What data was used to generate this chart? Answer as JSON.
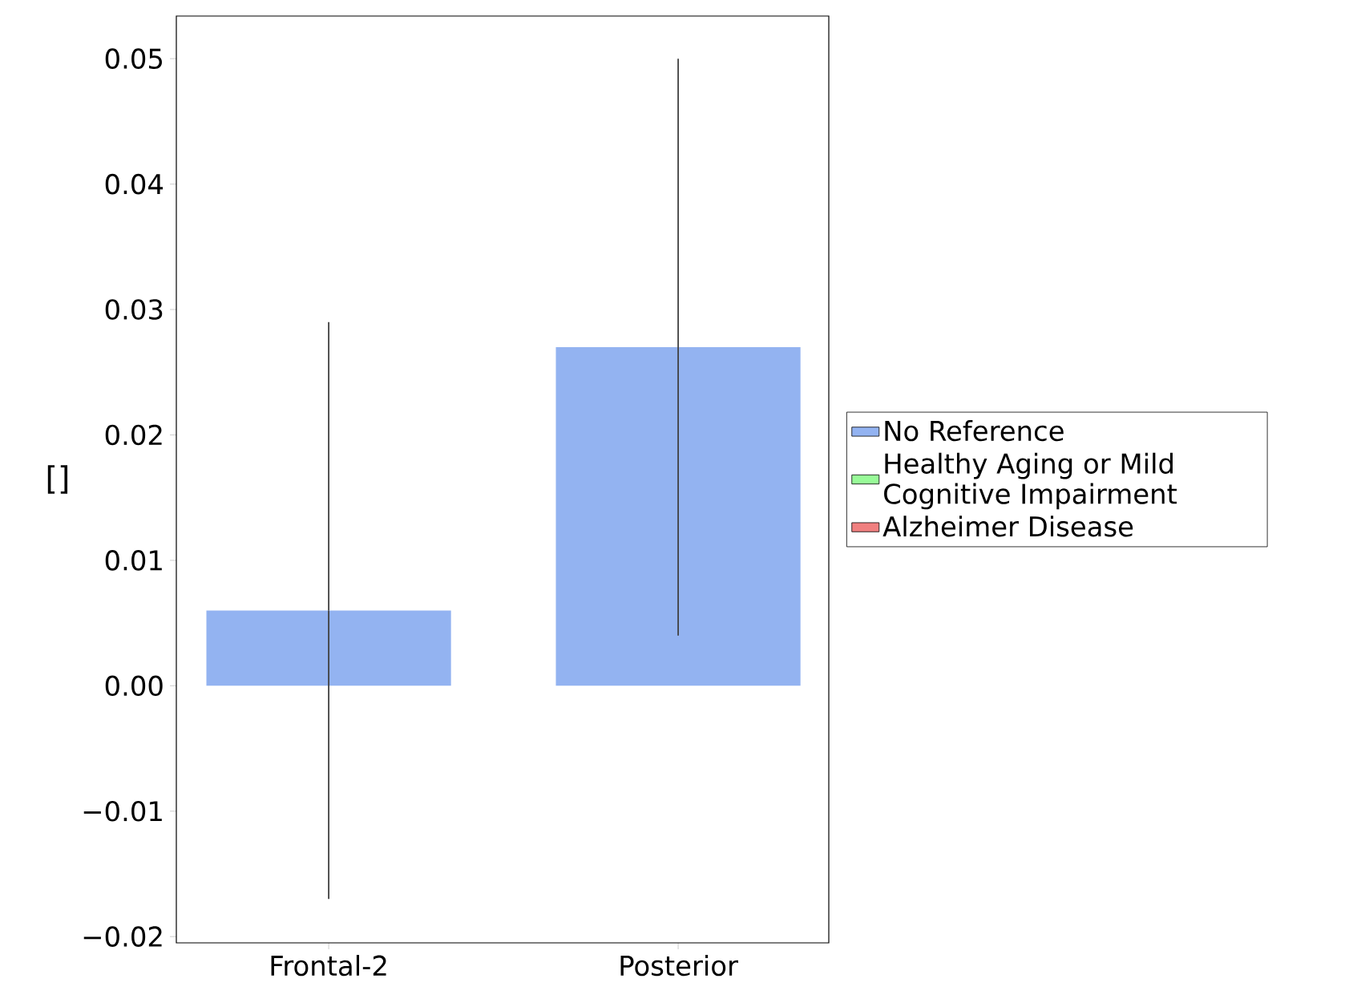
{
  "chart_data": {
    "type": "bar",
    "ylabel": "[]",
    "categories": [
      "Frontal-2",
      "Posterior"
    ],
    "series": [
      {
        "name": "No Reference",
        "color": "#93b3f1",
        "values": [
          0.006,
          0.027
        ],
        "errors": [
          [
            -0.017,
            0.029
          ],
          [
            0.004,
            0.05
          ]
        ]
      },
      {
        "name": "Healthy Aging or Mild Cognitive Impairment",
        "color": "#98fb98",
        "values": [
          null,
          null
        ]
      },
      {
        "name": "Alzheimer Disease",
        "color": "#f08080",
        "values": [
          null,
          null
        ]
      }
    ],
    "ylim": [
      -0.0205,
      0.0534
    ],
    "yticks": [
      {
        "value": -0.02,
        "label": "−0.02"
      },
      {
        "value": -0.01,
        "label": "−0.01"
      },
      {
        "value": 0,
        "label": "0.00"
      },
      {
        "value": 0.01,
        "label": "0.01"
      },
      {
        "value": 0.02,
        "label": "0.02"
      },
      {
        "value": 0.03,
        "label": "0.03"
      },
      {
        "value": 0.04,
        "label": "0.04"
      },
      {
        "value": 0.05,
        "label": "0.05"
      }
    ],
    "legend": "right",
    "grid": false
  }
}
